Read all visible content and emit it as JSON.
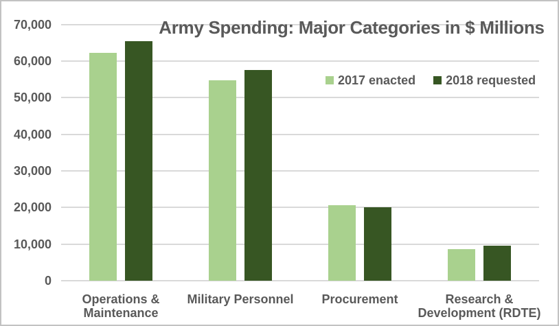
{
  "title": "Army Spending: Major Categories in $ Millions",
  "chart_data": {
    "type": "bar",
    "title": "Army Spending: Major Categories in $ Millions",
    "subtitle": "",
    "xlabel": "",
    "ylabel": "",
    "categories": [
      "Operations & Maintenance",
      "Military Personnel",
      "Procurement",
      "Research & Development (RDTE)"
    ],
    "category_label_lines": [
      [
        "Operations &",
        "Maintenance"
      ],
      [
        "Military Personnel"
      ],
      [
        "Procurement"
      ],
      [
        "Research &",
        "Development (RDTE)"
      ]
    ],
    "series": [
      {
        "name": "2017 enacted",
        "color": "#A9D18E",
        "values": [
          62200,
          54800,
          20700,
          8700
        ]
      },
      {
        "name": "2018 requested",
        "color": "#375623",
        "values": [
          65500,
          57600,
          20100,
          9600
        ]
      }
    ],
    "ylim": [
      0,
      70000
    ],
    "ytick_step": 10000,
    "yticks": [
      {
        "value": 0,
        "label": "0"
      },
      {
        "value": 10000,
        "label": "10,000"
      },
      {
        "value": 20000,
        "label": "20,000"
      },
      {
        "value": 30000,
        "label": "30,000"
      },
      {
        "value": 40000,
        "label": "40,000"
      },
      {
        "value": 50000,
        "label": "50,000"
      },
      {
        "value": 60000,
        "label": "60,000"
      },
      {
        "value": 70000,
        "label": "70,000"
      }
    ],
    "grid": true,
    "legend_position": "inside-upper-right"
  },
  "colors": {
    "text": "#595959",
    "gridline": "#D9D9D9",
    "background": "#FFFFFF",
    "frame_border": "#C2C2C2",
    "series_light_green": "#A9D18E",
    "series_dark_green": "#375623"
  }
}
